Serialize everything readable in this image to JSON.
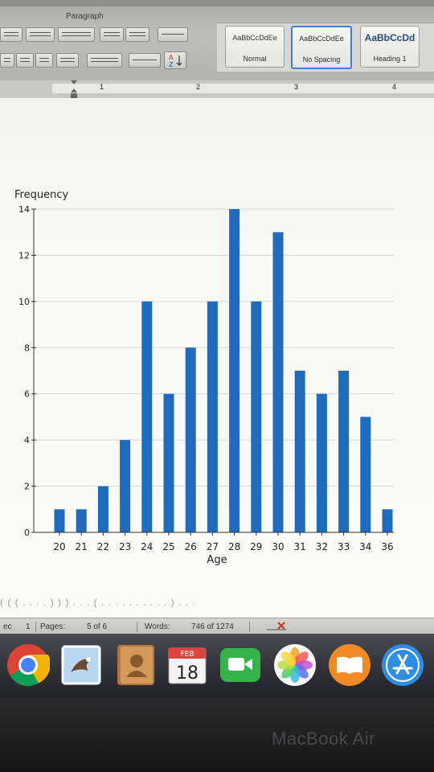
{
  "ribbon": {
    "group_label": "Paragraph",
    "styles": [
      {
        "sample": "AaBbCcDdEe",
        "name": "Normal"
      },
      {
        "sample": "AaBbCcDdEe",
        "name": "No Spacing"
      },
      {
        "sample": "AaBbCcDd",
        "name": "Heading 1"
      }
    ]
  },
  "ruler": {
    "marks": [
      "1",
      "2",
      "3",
      "4"
    ]
  },
  "chart_data": {
    "type": "bar",
    "ylabel": "Frequency",
    "xlabel": "Age",
    "categories": [
      "20",
      "21",
      "22",
      "23",
      "24",
      "25",
      "26",
      "27",
      "28",
      "29",
      "30",
      "31",
      "32",
      "33",
      "34",
      "36"
    ],
    "values": [
      1,
      1,
      2,
      4,
      10,
      6,
      8,
      10,
      14,
      10,
      13,
      7,
      6,
      7,
      5,
      1
    ],
    "ylim": [
      0,
      14
    ],
    "yticks": [
      "0",
      "2",
      "4",
      "6",
      "8",
      "10",
      "12",
      "14"
    ],
    "grid": true,
    "bar_color": "#1f6bbf"
  },
  "document": {
    "partial_text": "( ( ( . . . . ) ) ) . . . ( . . . . . . . . . . ) . . ."
  },
  "status_bar": {
    "section": "1",
    "pages_label": "Pages:",
    "pages_value": "5 of 6",
    "words_label": "Words:",
    "words_value": "746 of 1274"
  },
  "dock": {
    "calendar_month": "FEB",
    "calendar_day": "18",
    "apps": [
      "chrome-icon",
      "mail-icon",
      "contacts-icon",
      "calendar-icon",
      "facetime-icon",
      "photos-icon",
      "ibooks-icon",
      "app-store-icon"
    ]
  },
  "device": {
    "brand": "MacBook Air"
  }
}
